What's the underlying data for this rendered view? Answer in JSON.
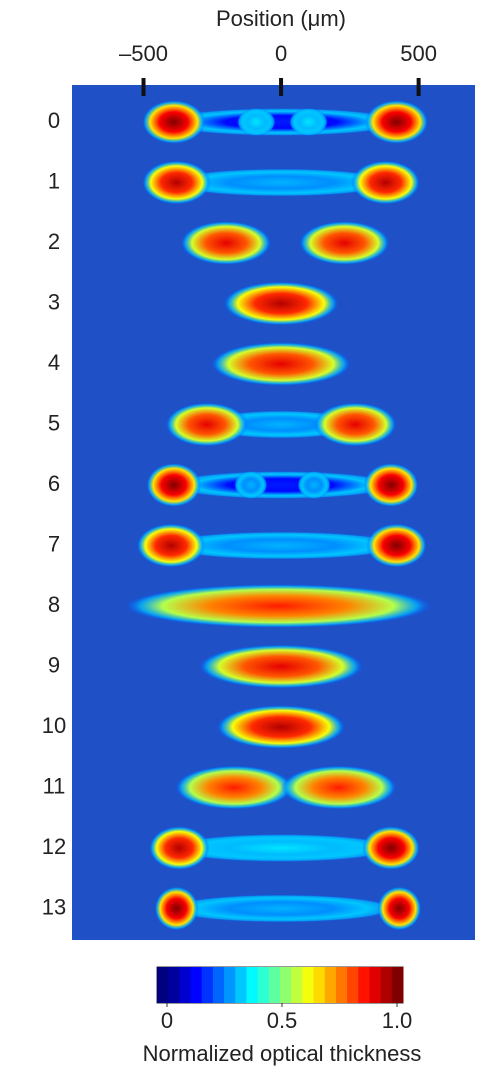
{
  "chart_data": {
    "type": "cloud-image",
    "x_label": "Position (μm)",
    "xlim": [
      -760,
      705
    ],
    "xticks": [
      {
        "value": -500,
        "label": "–500"
      },
      0,
      500
    ],
    "categories": [
      "0",
      "1",
      "2",
      "3",
      "4",
      "5",
      "6",
      "7",
      "8",
      "9",
      "10",
      "11",
      "12",
      "13"
    ],
    "clouds": [
      [
        {
          "x": 0,
          "width": 450,
          "peak": 0.15
        },
        {
          "x": -90,
          "width": 70,
          "peak": 0.35
        },
        {
          "x": 100,
          "width": 70,
          "peak": 0.35
        },
        {
          "x": -390,
          "width": 115,
          "peak": 1
        },
        {
          "x": 420,
          "width": 115,
          "peak": 1
        }
      ],
      [
        {
          "x": 0,
          "width": 420,
          "peak": 0.3
        },
        {
          "x": -380,
          "width": 125,
          "peak": 0.95
        },
        {
          "x": 380,
          "width": 125,
          "peak": 0.95
        }
      ],
      [
        {
          "x": -200,
          "width": 165,
          "peak": 0.9
        },
        {
          "x": 230,
          "width": 165,
          "peak": 0.9
        }
      ],
      [
        {
          "x": 0,
          "width": 210,
          "peak": 0.95
        }
      ],
      [
        {
          "x": 0,
          "width": 255,
          "peak": 0.9
        }
      ],
      [
        {
          "x": 0,
          "width": 300,
          "peak": 0.3
        },
        {
          "x": -270,
          "width": 150,
          "peak": 0.9
        },
        {
          "x": 270,
          "width": 150,
          "peak": 0.9
        }
      ],
      [
        {
          "x": 0,
          "width": 420,
          "peak": 0.15
        },
        {
          "x": -110,
          "width": 60,
          "peak": 0.3
        },
        {
          "x": 120,
          "width": 60,
          "peak": 0.3
        },
        {
          "x": -390,
          "width": 100,
          "peak": 1
        },
        {
          "x": 400,
          "width": 100,
          "peak": 1
        }
      ],
      [
        {
          "x": 0,
          "width": 450,
          "peak": 0.3
        },
        {
          "x": -400,
          "width": 125,
          "peak": 0.95
        },
        {
          "x": 420,
          "width": 110,
          "peak": 1
        }
      ],
      [
        {
          "x": -10,
          "width": 560,
          "peak": 0.85
        }
      ],
      [
        {
          "x": 0,
          "width": 300,
          "peak": 0.9
        }
      ],
      [
        {
          "x": 0,
          "width": 235,
          "peak": 0.95
        }
      ],
      [
        {
          "x": -170,
          "width": 215,
          "peak": 0.85
        },
        {
          "x": 210,
          "width": 210,
          "peak": 0.85
        }
      ],
      [
        {
          "x": 0,
          "width": 420,
          "peak": 0.35
        },
        {
          "x": -370,
          "width": 110,
          "peak": 0.95
        },
        {
          "x": 400,
          "width": 105,
          "peak": 1
        }
      ],
      [
        {
          "x": 0,
          "width": 420,
          "peak": 0.3
        },
        {
          "x": -380,
          "width": 80,
          "peak": 1
        },
        {
          "x": 430,
          "width": 80,
          "peak": 1
        }
      ]
    ],
    "colorbar": {
      "label": "Normalized optical thickness",
      "clim": [
        0,
        1
      ],
      "ticks": [
        0,
        0.5,
        {
          "value": 1,
          "label": "1.0"
        }
      ]
    }
  }
}
